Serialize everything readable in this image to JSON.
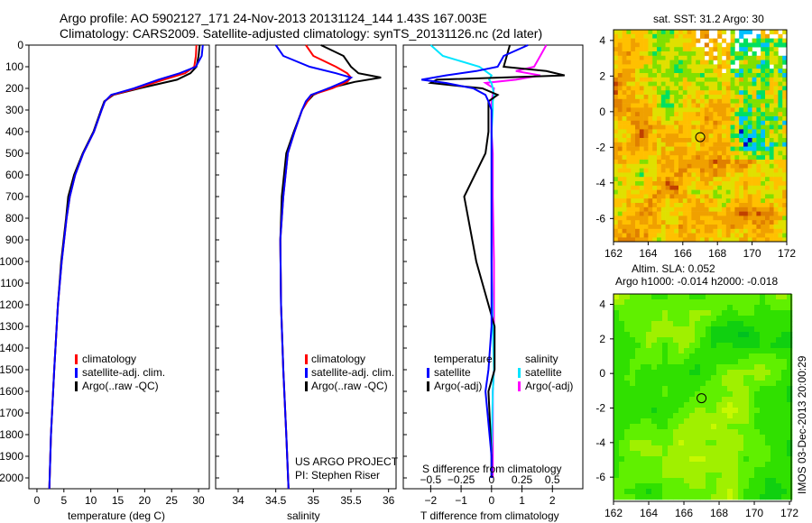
{
  "title_line1": "Argo profile: AO 5902127_171 24-Nov-2013 20131124_144 1.43S 167.003E",
  "title_line2": "Climatology: CARS2009. Satellite-adjusted climatology: synTS_20131126.nc (2d later)",
  "credit_line1": "US ARGO PROJECT",
  "credit_line2": "PI: Stephen Riser",
  "side_stamp": "IMOS 03-Dec-2013 20:00:29",
  "colors": {
    "climatology": "#ff0000",
    "satellite": "#0000ff",
    "argo": "#000000",
    "sal_satellite": "#00e5ff",
    "sal_argo": "#ff00ff"
  },
  "chart_data": [
    {
      "type": "line",
      "id": "temperature",
      "xlabel": "temperature (deg C)",
      "ylabel": "",
      "xlim": [
        -1.5,
        32
      ],
      "ylim": [
        2050,
        0
      ],
      "xticks": [
        "0",
        "5",
        "10",
        "15",
        "20",
        "25",
        "30"
      ],
      "yticks": [
        "0",
        "100",
        "200",
        "300",
        "400",
        "500",
        "600",
        "700",
        "800",
        "900",
        "1000",
        "1100",
        "1200",
        "1300",
        "1400",
        "1500",
        "1600",
        "1700",
        "1800",
        "1900",
        "2000"
      ],
      "legend": [
        "climatology",
        "satellite-adj. clim.",
        "Argo(..raw -QC)"
      ],
      "depth": [
        0,
        50,
        100,
        130,
        160,
        200,
        230,
        260,
        300,
        400,
        500,
        600,
        700,
        800,
        1000,
        1200,
        1500,
        1800,
        2050
      ],
      "series": [
        {
          "name": "climatology",
          "values": [
            29.6,
            29.5,
            29.2,
            27.5,
            23.5,
            18.5,
            14.0,
            12.6,
            12.0,
            10.6,
            8.6,
            7.1,
            6.1,
            5.5,
            4.6,
            3.9,
            3.2,
            2.6,
            2.3
          ]
        },
        {
          "name": "satellite-adj. clim.",
          "values": [
            30.8,
            30.6,
            29.5,
            26.5,
            22.5,
            18.0,
            13.8,
            12.6,
            12.0,
            10.6,
            8.6,
            7.1,
            6.1,
            5.5,
            4.6,
            3.9,
            3.2,
            2.6,
            2.3
          ]
        },
        {
          "name": "Argo(..raw -QC)",
          "values": [
            30.2,
            30.0,
            29.6,
            28.5,
            26.0,
            19.0,
            14.2,
            12.5,
            11.9,
            10.5,
            8.5,
            6.9,
            5.8,
            5.4,
            4.5,
            3.9,
            3.2,
            2.6,
            2.3
          ]
        }
      ]
    },
    {
      "type": "line",
      "id": "salinity",
      "xlabel": "salinity",
      "xlim": [
        33.7,
        36.1
      ],
      "ylim": [
        2050,
        0
      ],
      "xticks": [
        "34",
        "34.5",
        "35",
        "35.5",
        "36"
      ],
      "legend": [
        "climatology",
        "satellite-adj. clim.",
        "Argo(..raw -QC)"
      ],
      "depth": [
        0,
        50,
        100,
        130,
        150,
        170,
        200,
        230,
        260,
        300,
        400,
        500,
        700,
        900,
        1200,
        1500,
        1800,
        2050
      ],
      "series": [
        {
          "name": "climatology",
          "values": [
            34.9,
            35.0,
            35.3,
            35.45,
            35.5,
            35.45,
            35.25,
            34.98,
            34.92,
            34.85,
            34.75,
            34.66,
            34.6,
            34.56,
            34.57,
            34.6,
            34.64,
            34.67
          ]
        },
        {
          "name": "satellite-adj. clim.",
          "values": [
            34.5,
            34.6,
            34.95,
            35.3,
            35.5,
            35.4,
            35.2,
            34.97,
            34.9,
            34.85,
            34.75,
            34.66,
            34.6,
            34.56,
            34.57,
            34.6,
            34.64,
            34.67
          ]
        },
        {
          "name": "Argo(..raw -QC)",
          "values": [
            35.1,
            35.4,
            35.5,
            35.6,
            35.9,
            35.55,
            35.2,
            35.0,
            34.92,
            34.85,
            34.74,
            34.64,
            34.58,
            34.56,
            34.57,
            34.6,
            34.64,
            34.67
          ]
        }
      ]
    },
    {
      "type": "line",
      "id": "differences",
      "xlabel": "T difference from climatology",
      "x2label": "S difference from climatology",
      "xlim": [
        -2.9,
        3.0
      ],
      "x2lim": [
        -0.725,
        0.75
      ],
      "ylim": [
        2050,
        0
      ],
      "xticks": [
        "-2",
        "-1",
        "0",
        "1",
        "2"
      ],
      "x2ticks": [
        "-0.5",
        "-0.25",
        "0",
        "0.25",
        "0.5"
      ],
      "legend_temperature": {
        "heading": "temperature",
        "items": [
          "satellite",
          "Argo(-adj)"
        ]
      },
      "legend_salinity": {
        "heading": "salinity",
        "items": [
          "satellite",
          "Argo(-adj)"
        ]
      },
      "depth": [
        0,
        50,
        100,
        120,
        140,
        160,
        175,
        200,
        230,
        260,
        300,
        400,
        500,
        700,
        1000,
        1300,
        1500,
        1600,
        1900,
        2000
      ],
      "series": [
        {
          "name": "T satellite",
          "axis": "T",
          "values": [
            1.2,
            0.4,
            0.2,
            -0.5,
            -1.5,
            -2.3,
            -1.5,
            -0.6,
            -0.2,
            -0.1,
            0,
            0,
            0,
            0,
            0,
            0,
            -0.1,
            -0.2,
            0,
            0
          ]
        },
        {
          "name": "T Argo(-adj)",
          "axis": "T",
          "values": [
            0.6,
            0.5,
            0.4,
            1.8,
            2.4,
            -1.8,
            -2.0,
            -0.3,
            0.2,
            -0.1,
            -0.1,
            -0.1,
            -0.2,
            -0.9,
            -0.5,
            0.1,
            0.1,
            -0.1,
            0,
            0
          ]
        },
        {
          "name": "S satellite",
          "axis": "S",
          "values": [
            -0.5,
            -0.4,
            -0.1,
            -0.05,
            0,
            -0.02,
            0,
            0.01,
            0.02,
            0.01,
            0.01,
            0,
            0,
            0,
            0,
            0.01,
            0.02,
            0.01,
            0,
            0
          ]
        },
        {
          "name": "S Argo(-adj)",
          "axis": "S",
          "values": [
            0.45,
            0.4,
            0.35,
            0.2,
            0.4,
            0.2,
            -0.05,
            0.02,
            0.01,
            0,
            0,
            0,
            0.01,
            0.01,
            0.02,
            0.02,
            0.02,
            0.01,
            0.01,
            0.01
          ]
        }
      ]
    },
    {
      "type": "heatmap",
      "id": "sst_map",
      "title": "sat. SST: 31.2  Argo: 30",
      "xlim": [
        162,
        172
      ],
      "ylim": [
        -7.3,
        4.6
      ],
      "xticks": [
        "162",
        "164",
        "166",
        "168",
        "170",
        "172"
      ],
      "yticks": [
        "4",
        "2",
        "0",
        "-2",
        "-4",
        "-6"
      ],
      "argo_position": {
        "lon": 167.003,
        "lat": -1.43
      }
    },
    {
      "type": "heatmap",
      "id": "sla_map",
      "title": "Altim. SLA: 0.052",
      "subtitle": "Argo h1000: -0.014 h2000: -0.018",
      "xlim": [
        162,
        172.1
      ],
      "ylim": [
        -7.4,
        4.6
      ],
      "xticks": [
        "162",
        "164",
        "166",
        "168",
        "170",
        "172"
      ],
      "yticks": [
        "4",
        "2",
        "0",
        "-2",
        "-4",
        "-6"
      ],
      "argo_position": {
        "lon": 167.003,
        "lat": -1.43
      }
    }
  ]
}
